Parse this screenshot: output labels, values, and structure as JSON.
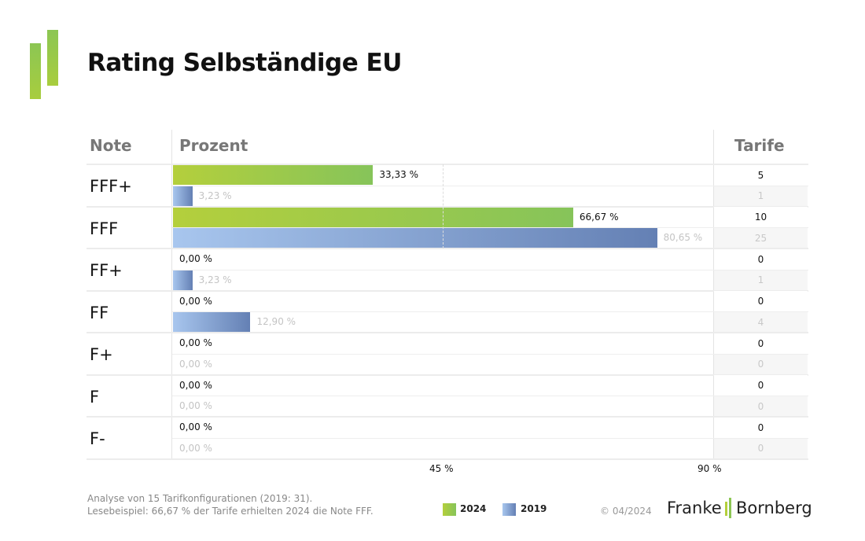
{
  "title": "Rating Selbständige EU",
  "headers": {
    "note": "Note",
    "prozent": "Prozent",
    "tarife": "Tarife"
  },
  "colors": {
    "y2024_start": "#b4cf3c",
    "y2024_end": "#86c45a",
    "y2019_start": "#a8c6ee",
    "y2019_end": "#6480b4"
  },
  "chart_data": {
    "type": "bar",
    "orientation": "horizontal",
    "title": "Rating Selbständige EU",
    "categories": [
      "FFF+",
      "FFF",
      "FF+",
      "FF",
      "F+",
      "F",
      "F-"
    ],
    "series": [
      {
        "name": "2024",
        "values": [
          33.33,
          66.67,
          0,
          0,
          0,
          0,
          0
        ],
        "labels": [
          "33,33 %",
          "66,67 %",
          "0,00 %",
          "0,00 %",
          "0,00 %",
          "0,00 %",
          "0,00 %"
        ],
        "tarife": [
          "5",
          "10",
          "0",
          "0",
          "0",
          "0",
          "0"
        ]
      },
      {
        "name": "2019",
        "values": [
          3.23,
          80.65,
          3.23,
          12.9,
          0,
          0,
          0
        ],
        "labels": [
          "3,23 %",
          "80,65 %",
          "3,23 %",
          "12,90 %",
          "0,00 %",
          "0,00 %",
          "0,00 %"
        ],
        "tarife": [
          "1",
          "25",
          "1",
          "4",
          "0",
          "0",
          "0"
        ]
      }
    ],
    "xlabel": "Prozent",
    "ylabel": "Note",
    "xlim": [
      0,
      90
    ],
    "xticks": [
      "45 %",
      "90 %"
    ],
    "legend": [
      "2024",
      "2019"
    ],
    "legend_position": "bottom"
  },
  "footer": {
    "note1": "Analyse von 15 Tarifkonfigurationen (2019: 31).",
    "note2": "Lesebeispiel: 66,67 % der Tarife erhielten 2024 die Note FFF.",
    "legend_2024": "2024",
    "legend_2019": "2019",
    "copyright": "© 04/2024",
    "brand_left": "Franke",
    "brand_right": "Bornberg"
  }
}
